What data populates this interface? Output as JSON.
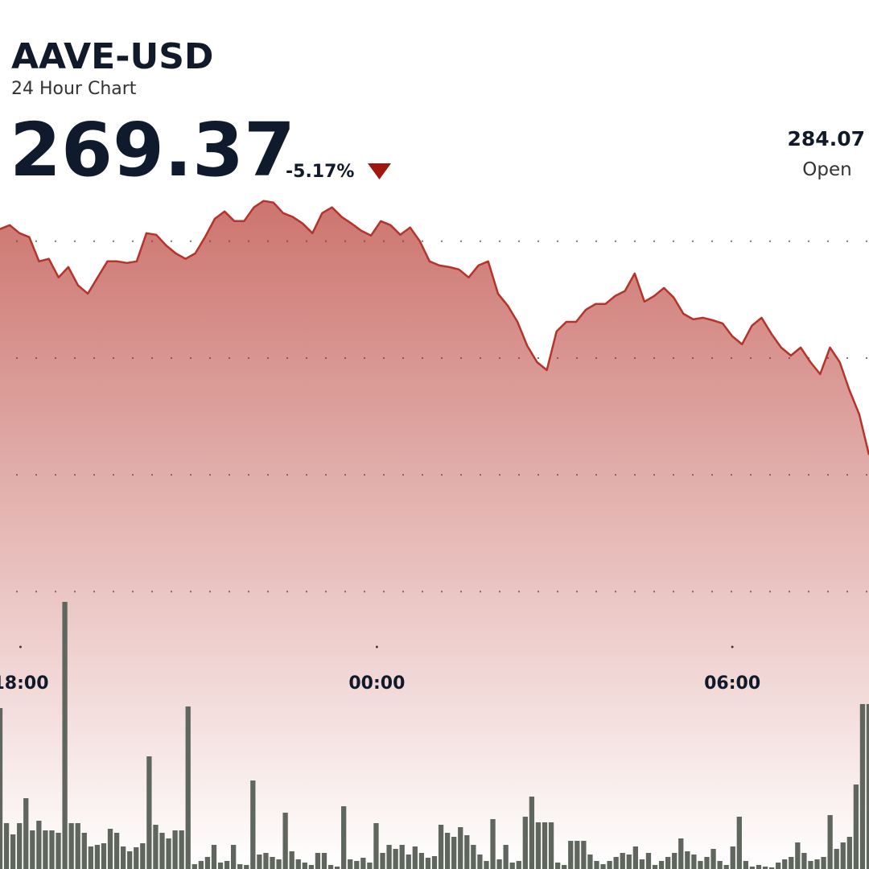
{
  "chart_data": {
    "type": "line",
    "title": "AAVE-USD",
    "subtitle": "24 Hour Chart",
    "price": "269.37",
    "change": "-5.17%",
    "open": "284.07",
    "open_label": "Open",
    "color": "#b5332b",
    "xlim": [
      0,
      89
    ],
    "xticks": [
      {
        "value": 2.1,
        "label": "18:00"
      },
      {
        "value": 38.6,
        "label": "00:00"
      },
      {
        "value": 75.0,
        "label": "06:00"
      }
    ],
    "ylim": [
      241,
      289.5
    ],
    "yticks": [
      284,
      276,
      268,
      260
    ],
    "grid": true,
    "values": [
      284.83,
      285.1,
      284.55,
      284.28,
      282.62,
      282.79,
      281.52,
      282.23,
      280.97,
      280.41,
      281.52,
      282.62,
      282.62,
      282.51,
      282.62,
      284.55,
      284.44,
      283.72,
      283.17,
      282.79,
      283.17,
      284.28,
      285.54,
      286.04,
      285.38,
      285.38,
      286.32,
      286.76,
      286.65,
      285.93,
      285.66,
      285.21,
      284.55,
      285.93,
      286.32,
      285.66,
      285.21,
      284.72,
      284.39,
      285.38,
      285.1,
      284.44,
      284.94,
      284.0,
      282.62,
      282.34,
      282.23,
      282.07,
      281.52,
      282.34,
      282.62,
      280.41,
      279.59,
      278.48,
      276.83,
      275.72,
      275.17,
      277.82,
      278.48,
      278.48,
      279.31,
      279.7,
      279.7,
      280.25,
      280.58,
      281.79,
      279.86,
      280.25,
      280.8,
      280.14,
      279.03,
      278.65,
      278.76,
      278.59,
      278.37,
      277.49,
      276.94,
      278.21,
      278.76,
      277.66,
      276.72,
      276.17,
      276.72,
      275.72,
      274.9,
      276.72,
      275.72,
      273.79,
      272.14,
      269.37
    ],
    "volume": {
      "color": "#5f665e",
      "vlim": [
        0,
        340
      ],
      "values": [
        200,
        57,
        43,
        57,
        88,
        48,
        60,
        48,
        48,
        45,
        332,
        57,
        57,
        45,
        28,
        30,
        32,
        50,
        45,
        28,
        22,
        27,
        32,
        140,
        55,
        45,
        38,
        48,
        48,
        202,
        6,
        10,
        15,
        30,
        8,
        10,
        30,
        6,
        5,
        110,
        18,
        20,
        15,
        12,
        70,
        22,
        12,
        8,
        5,
        20,
        20,
        5,
        3,
        78,
        12,
        10,
        14,
        8,
        57,
        20,
        30,
        25,
        30,
        18,
        28,
        20,
        14,
        16,
        55,
        45,
        40,
        52,
        42,
        30,
        18,
        10,
        62,
        12,
        30,
        8,
        10,
        65,
        90,
        58,
        58,
        58,
        8,
        5,
        35,
        35,
        35,
        18,
        10,
        6,
        10,
        15,
        20,
        18,
        28,
        12,
        20,
        5,
        10,
        15,
        20,
        38,
        22,
        18,
        10,
        15,
        25,
        10,
        5,
        28,
        65,
        10,
        3,
        5,
        3,
        2,
        8,
        12,
        15,
        33,
        20,
        10,
        12,
        15,
        67,
        25,
        33,
        40,
        105,
        205,
        205
      ]
    }
  }
}
